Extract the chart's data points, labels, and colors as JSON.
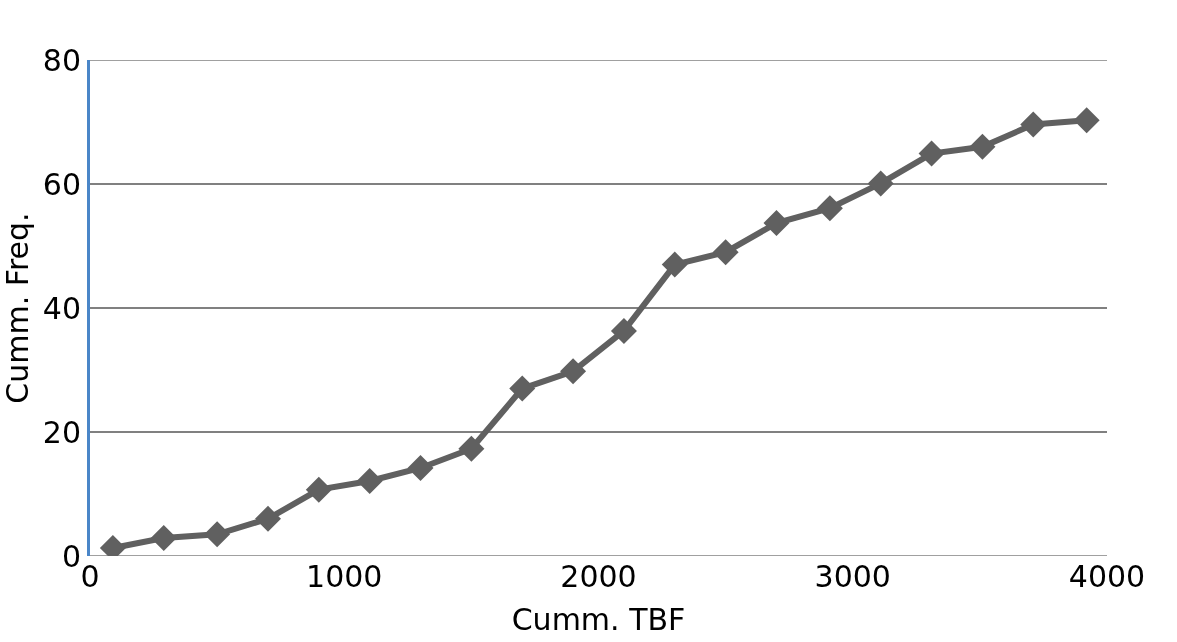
{
  "chart_data": {
    "type": "line",
    "xlabel": "Cumm. TBF",
    "ylabel": "Cumm. Freq.",
    "x": [
      90,
      290,
      500,
      700,
      900,
      1100,
      1300,
      1500,
      1700,
      1900,
      2100,
      2300,
      2500,
      2700,
      2910,
      3110,
      3310,
      3510,
      3710,
      3920
    ],
    "series": [
      {
        "color": "#606060",
        "values": [
          1.3,
          2.9,
          3.5,
          6.0,
          10.7,
          12.1,
          14.2,
          17.3,
          27.0,
          29.8,
          36.3,
          47.0,
          49.0,
          53.7,
          56.1,
          60.1,
          64.9,
          66.0,
          69.6,
          70.3
        ]
      }
    ],
    "xlim": [
      0,
      4000
    ],
    "xticks": [
      0,
      1000,
      2000,
      3000,
      4000
    ],
    "ylim": [
      0,
      80
    ],
    "yticks": [
      0,
      20,
      40,
      60,
      80
    ],
    "grid": "y",
    "marker": "diamond",
    "line_style": "solid"
  }
}
